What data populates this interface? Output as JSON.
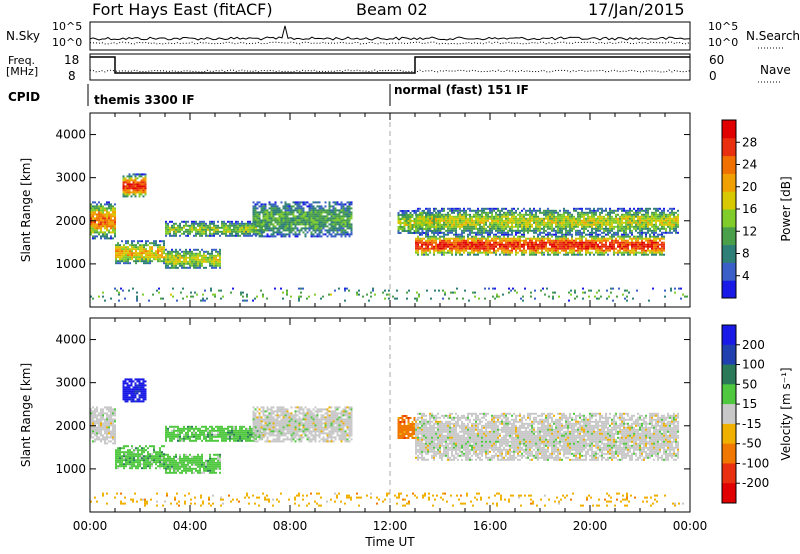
{
  "header": {
    "station": "Fort Hays East (fitACF)",
    "beam": "Beam 02",
    "date": "17/Jan/2015"
  },
  "top_panels": {
    "nsky_label": "N.Sky",
    "nsky_ticks": [
      "10^5",
      "10^0"
    ],
    "nsearch_label": "N.Search",
    "nsearch_ticks": [
      "10^5",
      "10^0"
    ],
    "freq_label_line1": "Freq.",
    "freq_label_line2": "[MHz]",
    "freq_ticks": [
      "18",
      "8"
    ],
    "nave_label": "Nave",
    "nave_ticks": [
      "60",
      "0"
    ],
    "cpid_label": "CPID",
    "cpid_modes": [
      {
        "text": "themis 3300 IF",
        "start_hour": 0
      },
      {
        "text": "normal (fast) 151 IF",
        "start_hour": 12
      }
    ],
    "freq_steps": [
      {
        "from": 0,
        "to": 1,
        "value": 18
      },
      {
        "from": 1,
        "to": 13,
        "value": 8
      },
      {
        "from": 13,
        "to": 24,
        "value": 18
      }
    ]
  },
  "chart_data": [
    {
      "type": "heatmap",
      "name": "power",
      "ylabel": "Slant Range [km]",
      "yticks": [
        1000,
        2000,
        3000,
        4000
      ],
      "ylim": [
        0,
        4500
      ],
      "xlim": [
        0,
        24
      ],
      "colorbar": {
        "label": "Power [dB]",
        "ticks": [
          4,
          8,
          12,
          16,
          20,
          24,
          28
        ],
        "colors": [
          "#1a1ae6",
          "#3a5fc8",
          "#2e7f78",
          "#4aa04a",
          "#7fcc2a",
          "#d8c800",
          "#f0a000",
          "#f07000",
          "#e83010",
          "#e00000"
        ],
        "range": [
          0,
          32
        ]
      },
      "echo_regions": [
        {
          "x": [
            0.0,
            1.0
          ],
          "y": [
            1600,
            2450
          ],
          "level": 0.55
        },
        {
          "x": [
            1.0,
            3.0
          ],
          "y": [
            1000,
            1550
          ],
          "level": 0.45
        },
        {
          "x": [
            1.3,
            2.2
          ],
          "y": [
            2550,
            3100
          ],
          "level": 0.7
        },
        {
          "x": [
            3.0,
            5.2
          ],
          "y": [
            900,
            1350
          ],
          "level": 0.35
        },
        {
          "x": [
            3.0,
            7.0
          ],
          "y": [
            1650,
            2000
          ],
          "level": 0.3
        },
        {
          "x": [
            6.5,
            10.5
          ],
          "y": [
            1650,
            2450
          ],
          "level": 0.22
        },
        {
          "x": [
            12.3,
            14.0
          ],
          "y": [
            1700,
            2250
          ],
          "level": 0.35
        },
        {
          "x": [
            13.0,
            23.0
          ],
          "y": [
            1200,
            1700
          ],
          "level": 0.7
        },
        {
          "x": [
            13.0,
            23.5
          ],
          "y": [
            1700,
            2300
          ],
          "level": 0.35
        },
        {
          "x": [
            0,
            24
          ],
          "y": [
            150,
            450
          ],
          "level": 0.25
        }
      ]
    },
    {
      "type": "heatmap",
      "name": "velocity",
      "ylabel": "Slant Range [km]",
      "yticks": [
        1000,
        2000,
        3000,
        4000
      ],
      "ylim": [
        0,
        4500
      ],
      "xlim": [
        0,
        24
      ],
      "xlabel": "Time UT",
      "xticks": [
        "00:00",
        "04:00",
        "08:00",
        "12:00",
        "16:00",
        "20:00",
        "00:00"
      ],
      "colorbar": {
        "label": "Velocity [m s⁻¹]",
        "ticks": [
          "200",
          "100",
          "50",
          "15",
          "-15",
          "-50",
          "-100",
          "-200"
        ],
        "colors": [
          "#1a1ae6",
          "#2040b0",
          "#2a7a5a",
          "#4fc840",
          "#c8c8c8",
          "#f0b000",
          "#f07800",
          "#e83010",
          "#e00000"
        ]
      },
      "echo_regions": [
        {
          "x": [
            0.0,
            1.0
          ],
          "y": [
            1600,
            2450
          ],
          "cls": 4
        },
        {
          "x": [
            1.0,
            3.0
          ],
          "y": [
            1000,
            1550
          ],
          "cls": 3
        },
        {
          "x": [
            1.3,
            2.2
          ],
          "y": [
            2550,
            3100
          ],
          "cls": 0
        },
        {
          "x": [
            3.0,
            5.2
          ],
          "y": [
            900,
            1350
          ],
          "cls": 3
        },
        {
          "x": [
            3.0,
            7.0
          ],
          "y": [
            1650,
            2000
          ],
          "cls": 3
        },
        {
          "x": [
            6.5,
            10.5
          ],
          "y": [
            1650,
            2450
          ],
          "cls": 4
        },
        {
          "x": [
            12.3,
            13.0
          ],
          "y": [
            1700,
            2250
          ],
          "cls": 6
        },
        {
          "x": [
            13.0,
            23.5
          ],
          "y": [
            1200,
            2300
          ],
          "cls": 4
        },
        {
          "x": [
            0,
            24
          ],
          "y": [
            150,
            450
          ],
          "cls": 5
        }
      ]
    }
  ]
}
